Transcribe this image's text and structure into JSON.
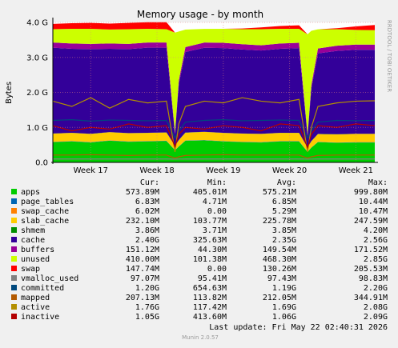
{
  "chart_data": {
    "type": "area",
    "title": "Memory usage - by month",
    "y_label": "Bytes",
    "side_label": "RRDTOOL / TOBI OETIKER",
    "footer": "Munin 2.0.57",
    "last_update": "Last update: Fri May 22 02:40:31 2026",
    "stat_headers": [
      "Cur:",
      "Min:",
      "Avg:",
      "Max:"
    ],
    "grid": true,
    "xlim": [
      0,
      34
    ],
    "xticks": [
      {
        "value": 4,
        "label": "Week 17"
      },
      {
        "value": 11,
        "label": "Week 18"
      },
      {
        "value": 18,
        "label": "Week 19"
      },
      {
        "value": 25,
        "label": "Week 20"
      },
      {
        "value": 32,
        "label": "Week 21"
      }
    ],
    "ylim": [
      0,
      4
    ],
    "yticks": [
      {
        "value": 0,
        "label": "0.0"
      },
      {
        "value": 1,
        "label": "1.0 G"
      },
      {
        "value": 2,
        "label": "2.0 G"
      },
      {
        "value": 3,
        "label": "3.0 G"
      },
      {
        "value": 4,
        "label": "4.0 G"
      }
    ],
    "x": [
      0,
      2,
      4,
      6,
      8,
      10,
      12,
      12.9,
      13.3,
      14,
      16,
      18,
      20,
      22,
      24,
      26,
      26.9,
      27.3,
      28,
      30,
      32,
      34
    ],
    "series": [
      {
        "name": "apps",
        "color": "#00cc00",
        "style": "area",
        "cur": "573.89M",
        "min": "405.01M",
        "avg": "575.21M",
        "max": "999.80M",
        "values": [
          0.58,
          0.6,
          0.57,
          0.62,
          0.59,
          0.6,
          0.61,
          0.35,
          0.45,
          0.62,
          0.63,
          0.6,
          0.58,
          0.57,
          0.6,
          0.6,
          0.3,
          0.42,
          0.58,
          0.56,
          0.57,
          0.57
        ]
      },
      {
        "name": "page_tables",
        "color": "#0066b3",
        "style": "area",
        "cur": "6.83M",
        "min": "4.71M",
        "avg": "6.85M",
        "max": "10.44M",
        "values": [
          0.007,
          0.007,
          0.007,
          0.007,
          0.007,
          0.007,
          0.007,
          0.005,
          0.006,
          0.007,
          0.007,
          0.007,
          0.007,
          0.007,
          0.007,
          0.007,
          0.005,
          0.006,
          0.007,
          0.007,
          0.007,
          0.007
        ]
      },
      {
        "name": "swap_cache",
        "color": "#ff8000",
        "style": "area",
        "cur": "6.02M",
        "min": "0.00",
        "avg": "5.29M",
        "max": "10.47M",
        "values": [
          0.006,
          0.006,
          0.006,
          0.006,
          0.006,
          0.006,
          0.006,
          0,
          0,
          0.002,
          0.004,
          0.005,
          0.006,
          0.006,
          0.006,
          0.006,
          0,
          0,
          0.002,
          0.004,
          0.006,
          0.006
        ]
      },
      {
        "name": "slab_cache",
        "color": "#ffcc00",
        "style": "area",
        "cur": "232.10M",
        "min": "103.77M",
        "avg": "225.78M",
        "max": "247.59M",
        "values": [
          0.23,
          0.23,
          0.23,
          0.23,
          0.23,
          0.23,
          0.23,
          0.12,
          0.18,
          0.22,
          0.23,
          0.23,
          0.23,
          0.23,
          0.23,
          0.23,
          0.12,
          0.18,
          0.22,
          0.23,
          0.23,
          0.23
        ]
      },
      {
        "name": "shmem",
        "color": "#008f00",
        "style": "area",
        "cur": "3.86M",
        "min": "3.71M",
        "avg": "3.85M",
        "max": "4.20M",
        "values": [
          0.004,
          0.004,
          0.004,
          0.004,
          0.004,
          0.004,
          0.004,
          0.004,
          0.004,
          0.004,
          0.004,
          0.004,
          0.004,
          0.004,
          0.004,
          0.004,
          0.004,
          0.004,
          0.004,
          0.004,
          0.004,
          0.004
        ]
      },
      {
        "name": "cache",
        "color": "#330099",
        "style": "area",
        "cur": "2.40G",
        "min": "325.63M",
        "avg": "2.35G",
        "max": "2.56G",
        "values": [
          2.45,
          2.4,
          2.42,
          2.38,
          2.4,
          2.43,
          2.42,
          0.33,
          1.6,
          2.3,
          2.4,
          2.42,
          2.4,
          2.38,
          2.4,
          2.42,
          0.33,
          1.5,
          2.3,
          2.38,
          2.4,
          2.4
        ]
      },
      {
        "name": "buffers",
        "color": "#990099",
        "style": "area",
        "cur": "151.12M",
        "min": "44.30M",
        "avg": "149.54M",
        "max": "171.52M",
        "values": [
          0.15,
          0.15,
          0.15,
          0.15,
          0.15,
          0.15,
          0.15,
          0.05,
          0.1,
          0.14,
          0.15,
          0.15,
          0.15,
          0.15,
          0.15,
          0.15,
          0.05,
          0.1,
          0.14,
          0.15,
          0.15,
          0.15
        ]
      },
      {
        "name": "unused",
        "color": "#ccff00",
        "style": "area",
        "cur": "410.00M",
        "min": "101.38M",
        "avg": "468.30M",
        "max": "2.85G",
        "values": [
          0.38,
          0.42,
          0.43,
          0.4,
          0.42,
          0.39,
          0.38,
          2.85,
          1.4,
          0.5,
          0.39,
          0.4,
          0.43,
          0.46,
          0.42,
          0.4,
          2.85,
          1.55,
          0.55,
          0.47,
          0.42,
          0.41
        ]
      },
      {
        "name": "swap",
        "color": "#ff0000",
        "style": "area",
        "cur": "147.74M",
        "min": "0.00",
        "avg": "130.26M",
        "max": "205.53M",
        "values": [
          0.15,
          0.16,
          0.17,
          0.17,
          0.18,
          0.19,
          0.2,
          0,
          0,
          0,
          0,
          0,
          0.02,
          0.05,
          0.08,
          0.1,
          0,
          0,
          0,
          0.03,
          0.1,
          0.148
        ]
      },
      {
        "name": "vmalloc_used",
        "color": "#808080",
        "style": "line",
        "cur": "97.07M",
        "min": "95.41M",
        "avg": "97.43M",
        "max": "98.83M",
        "values": [
          0.097,
          0.097,
          0.097,
          0.097,
          0.097,
          0.097,
          0.097,
          0.095,
          0.096,
          0.097,
          0.097,
          0.097,
          0.097,
          0.097,
          0.097,
          0.097,
          0.095,
          0.096,
          0.097,
          0.097,
          0.097,
          0.097
        ]
      },
      {
        "name": "committed",
        "color": "#00487d",
        "style": "line",
        "cur": "1.20G",
        "min": "654.63M",
        "avg": "1.19G",
        "max": "2.20G",
        "values": [
          1.2,
          1.22,
          1.18,
          1.21,
          1.2,
          1.19,
          1.2,
          0.7,
          0.9,
          1.15,
          1.2,
          1.22,
          1.19,
          1.2,
          1.21,
          1.2,
          0.7,
          0.9,
          1.15,
          1.2,
          1.19,
          1.2
        ]
      },
      {
        "name": "mapped",
        "color": "#b35a00",
        "style": "line",
        "cur": "207.13M",
        "min": "113.82M",
        "avg": "212.05M",
        "max": "344.91M",
        "values": [
          0.21,
          0.21,
          0.22,
          0.21,
          0.2,
          0.21,
          0.21,
          0.12,
          0.16,
          0.2,
          0.21,
          0.22,
          0.21,
          0.21,
          0.21,
          0.21,
          0.12,
          0.16,
          0.2,
          0.21,
          0.21,
          0.21
        ]
      },
      {
        "name": "active",
        "color": "#b38f00",
        "style": "line",
        "cur": "1.76G",
        "min": "117.42M",
        "avg": "1.69G",
        "max": "2.08G",
        "values": [
          1.75,
          1.6,
          1.85,
          1.55,
          1.8,
          1.7,
          1.75,
          0.3,
          1.1,
          1.6,
          1.75,
          1.7,
          1.85,
          1.75,
          1.7,
          1.8,
          0.3,
          1.0,
          1.6,
          1.7,
          1.75,
          1.76
        ]
      },
      {
        "name": "inactive",
        "color": "#b30000",
        "style": "line",
        "cur": "1.05G",
        "min": "413.60M",
        "avg": "1.06G",
        "max": "2.09G",
        "values": [
          1.05,
          0.9,
          1.0,
          0.95,
          1.1,
          1.0,
          1.05,
          0.45,
          0.8,
          1.0,
          0.95,
          1.05,
          1.0,
          0.9,
          1.1,
          1.05,
          0.42,
          0.8,
          1.05,
          1.0,
          1.1,
          1.05
        ]
      }
    ]
  }
}
